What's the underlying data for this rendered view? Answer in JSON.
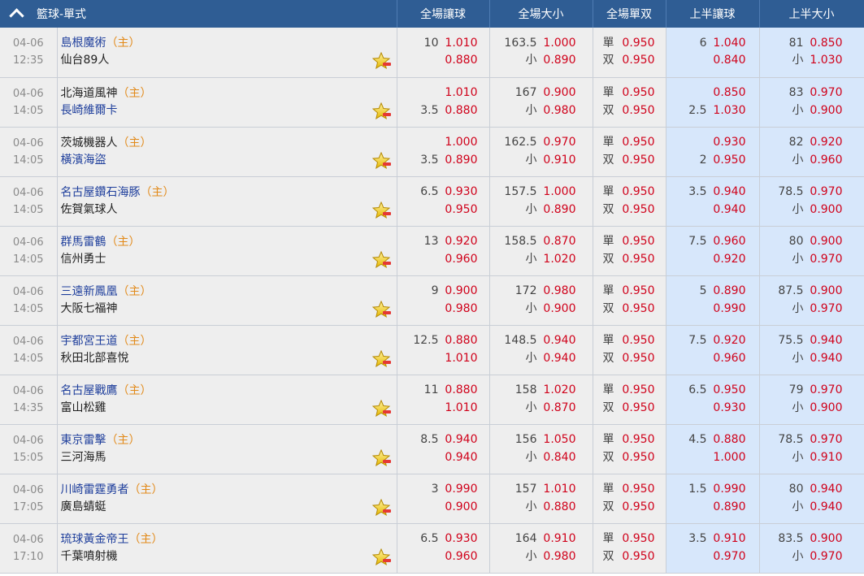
{
  "header": {
    "title": "籃球-單式",
    "columns": [
      "全場讓球",
      "全場大小",
      "全場單双",
      "上半讓球",
      "上半大小"
    ]
  },
  "colors": {
    "header_bg": "#2f5d94",
    "odds_red": "#d0021b",
    "home_tag": "#e28a1a",
    "highlight_bg": "#d7e7fb",
    "row_bg": "#eeeeee"
  },
  "icons": {
    "favorite": "star-icon"
  },
  "matches": [
    {
      "date": "04-06",
      "time": "12:35",
      "home": "島根魔術",
      "away": "仙台89人",
      "home_tag": "（主）",
      "home_color": "#1f3f9c",
      "away_color": "#222222",
      "hcp": {
        "l1": "10",
        "v1": "1.010",
        "l2": "",
        "v2": "0.880"
      },
      "ou": {
        "l1": "163.5",
        "v1": "1.000",
        "l2": "小",
        "v2": "0.890"
      },
      "oe": {
        "l1": "單",
        "v1": "0.950",
        "l2": "双",
        "v2": "0.950"
      },
      "h_hcp": {
        "l1": "6",
        "v1": "1.040",
        "l2": "",
        "v2": "0.840"
      },
      "h_ou": {
        "l1": "81",
        "v1": "0.850",
        "l2": "小",
        "v2": "1.030"
      }
    },
    {
      "date": "04-06",
      "time": "14:05",
      "home": "北海道風神",
      "away": "長崎維爾卡",
      "home_tag": "（主）",
      "home_color": "#222222",
      "away_color": "#1f3f9c",
      "hcp": {
        "l1": "",
        "v1": "1.010",
        "l2": "3.5",
        "v2": "0.880"
      },
      "ou": {
        "l1": "167",
        "v1": "0.900",
        "l2": "小",
        "v2": "0.980"
      },
      "oe": {
        "l1": "單",
        "v1": "0.950",
        "l2": "双",
        "v2": "0.950"
      },
      "h_hcp": {
        "l1": "",
        "v1": "0.850",
        "l2": "2.5",
        "v2": "1.030"
      },
      "h_ou": {
        "l1": "83",
        "v1": "0.970",
        "l2": "小",
        "v2": "0.900"
      }
    },
    {
      "date": "04-06",
      "time": "14:05",
      "home": "茨城機器人",
      "away": "橫濱海盜",
      "home_tag": "（主）",
      "home_color": "#222222",
      "away_color": "#1f3f9c",
      "hcp": {
        "l1": "",
        "v1": "1.000",
        "l2": "3.5",
        "v2": "0.890"
      },
      "ou": {
        "l1": "162.5",
        "v1": "0.970",
        "l2": "小",
        "v2": "0.910"
      },
      "oe": {
        "l1": "單",
        "v1": "0.950",
        "l2": "双",
        "v2": "0.950"
      },
      "h_hcp": {
        "l1": "",
        "v1": "0.930",
        "l2": "2",
        "v2": "0.950"
      },
      "h_ou": {
        "l1": "82",
        "v1": "0.920",
        "l2": "小",
        "v2": "0.960"
      }
    },
    {
      "date": "04-06",
      "time": "14:05",
      "home": "名古屋鑽石海豚",
      "away": "佐賀氣球人",
      "home_tag": "（主）",
      "home_color": "#1f3f9c",
      "away_color": "#222222",
      "hcp": {
        "l1": "6.5",
        "v1": "0.930",
        "l2": "",
        "v2": "0.950"
      },
      "ou": {
        "l1": "157.5",
        "v1": "1.000",
        "l2": "小",
        "v2": "0.890"
      },
      "oe": {
        "l1": "單",
        "v1": "0.950",
        "l2": "双",
        "v2": "0.950"
      },
      "h_hcp": {
        "l1": "3.5",
        "v1": "0.940",
        "l2": "",
        "v2": "0.940"
      },
      "h_ou": {
        "l1": "78.5",
        "v1": "0.970",
        "l2": "小",
        "v2": "0.900"
      }
    },
    {
      "date": "04-06",
      "time": "14:05",
      "home": "群馬雷鶴",
      "away": "信州勇士",
      "home_tag": "（主）",
      "home_color": "#1f3f9c",
      "away_color": "#222222",
      "hcp": {
        "l1": "13",
        "v1": "0.920",
        "l2": "",
        "v2": "0.960"
      },
      "ou": {
        "l1": "158.5",
        "v1": "0.870",
        "l2": "小",
        "v2": "1.020"
      },
      "oe": {
        "l1": "單",
        "v1": "0.950",
        "l2": "双",
        "v2": "0.950"
      },
      "h_hcp": {
        "l1": "7.5",
        "v1": "0.960",
        "l2": "",
        "v2": "0.920"
      },
      "h_ou": {
        "l1": "80",
        "v1": "0.900",
        "l2": "小",
        "v2": "0.970"
      }
    },
    {
      "date": "04-06",
      "time": "14:05",
      "home": "三遠新鳳凰",
      "away": "大阪七福神",
      "home_tag": "（主）",
      "home_color": "#1f3f9c",
      "away_color": "#222222",
      "hcp": {
        "l1": "9",
        "v1": "0.900",
        "l2": "",
        "v2": "0.980"
      },
      "ou": {
        "l1": "172",
        "v1": "0.980",
        "l2": "小",
        "v2": "0.900"
      },
      "oe": {
        "l1": "單",
        "v1": "0.950",
        "l2": "双",
        "v2": "0.950"
      },
      "h_hcp": {
        "l1": "5",
        "v1": "0.890",
        "l2": "",
        "v2": "0.990"
      },
      "h_ou": {
        "l1": "87.5",
        "v1": "0.900",
        "l2": "小",
        "v2": "0.970"
      }
    },
    {
      "date": "04-06",
      "time": "14:05",
      "home": "宇都宮王道",
      "away": "秋田北部喜悅",
      "home_tag": "（主）",
      "home_color": "#1f3f9c",
      "away_color": "#222222",
      "hcp": {
        "l1": "12.5",
        "v1": "0.880",
        "l2": "",
        "v2": "1.010"
      },
      "ou": {
        "l1": "148.5",
        "v1": "0.940",
        "l2": "小",
        "v2": "0.940"
      },
      "oe": {
        "l1": "單",
        "v1": "0.950",
        "l2": "双",
        "v2": "0.950"
      },
      "h_hcp": {
        "l1": "7.5",
        "v1": "0.920",
        "l2": "",
        "v2": "0.960"
      },
      "h_ou": {
        "l1": "75.5",
        "v1": "0.940",
        "l2": "小",
        "v2": "0.940"
      }
    },
    {
      "date": "04-06",
      "time": "14:35",
      "home": "名古屋戰鷹",
      "away": "富山松雞",
      "home_tag": "（主）",
      "home_color": "#1f3f9c",
      "away_color": "#222222",
      "hcp": {
        "l1": "11",
        "v1": "0.880",
        "l2": "",
        "v2": "1.010"
      },
      "ou": {
        "l1": "158",
        "v1": "1.020",
        "l2": "小",
        "v2": "0.870"
      },
      "oe": {
        "l1": "單",
        "v1": "0.950",
        "l2": "双",
        "v2": "0.950"
      },
      "h_hcp": {
        "l1": "6.5",
        "v1": "0.950",
        "l2": "",
        "v2": "0.930"
      },
      "h_ou": {
        "l1": "79",
        "v1": "0.970",
        "l2": "小",
        "v2": "0.900"
      }
    },
    {
      "date": "04-06",
      "time": "15:05",
      "home": "東京雷擊",
      "away": "三河海馬",
      "home_tag": "（主）",
      "home_color": "#1f3f9c",
      "away_color": "#222222",
      "hcp": {
        "l1": "8.5",
        "v1": "0.940",
        "l2": "",
        "v2": "0.940"
      },
      "ou": {
        "l1": "156",
        "v1": "1.050",
        "l2": "小",
        "v2": "0.840"
      },
      "oe": {
        "l1": "單",
        "v1": "0.950",
        "l2": "双",
        "v2": "0.950"
      },
      "h_hcp": {
        "l1": "4.5",
        "v1": "0.880",
        "l2": "",
        "v2": "1.000"
      },
      "h_ou": {
        "l1": "78.5",
        "v1": "0.970",
        "l2": "小",
        "v2": "0.910"
      }
    },
    {
      "date": "04-06",
      "time": "17:05",
      "home": "川崎雷霆勇者",
      "away": "廣島蜻蜓",
      "home_tag": "（主）",
      "home_color": "#1f3f9c",
      "away_color": "#222222",
      "hcp": {
        "l1": "3",
        "v1": "0.990",
        "l2": "",
        "v2": "0.900"
      },
      "ou": {
        "l1": "157",
        "v1": "1.010",
        "l2": "小",
        "v2": "0.880"
      },
      "oe": {
        "l1": "單",
        "v1": "0.950",
        "l2": "双",
        "v2": "0.950"
      },
      "h_hcp": {
        "l1": "1.5",
        "v1": "0.990",
        "l2": "",
        "v2": "0.890"
      },
      "h_ou": {
        "l1": "80",
        "v1": "0.940",
        "l2": "小",
        "v2": "0.940"
      }
    },
    {
      "date": "04-06",
      "time": "17:10",
      "home": "琉球黃金帝王",
      "away": "千葉噴射機",
      "home_tag": "（主）",
      "home_color": "#1f3f9c",
      "away_color": "#222222",
      "hcp": {
        "l1": "6.5",
        "v1": "0.930",
        "l2": "",
        "v2": "0.960"
      },
      "ou": {
        "l1": "164",
        "v1": "0.910",
        "l2": "小",
        "v2": "0.980"
      },
      "oe": {
        "l1": "單",
        "v1": "0.950",
        "l2": "双",
        "v2": "0.950"
      },
      "h_hcp": {
        "l1": "3.5",
        "v1": "0.910",
        "l2": "",
        "v2": "0.970"
      },
      "h_ou": {
        "l1": "83.5",
        "v1": "0.900",
        "l2": "小",
        "v2": "0.970"
      }
    }
  ]
}
